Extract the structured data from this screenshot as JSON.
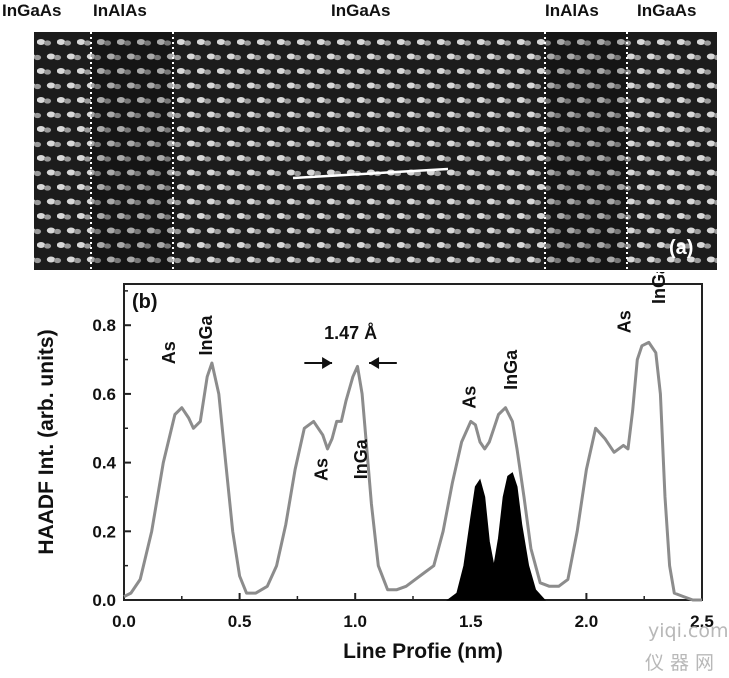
{
  "figure": {
    "region_labels": [
      "InGaAs",
      "InAlAs",
      "InGaAs",
      "InAlAs",
      "InGaAs"
    ],
    "panel_a_label": "(a)",
    "panel_b_label": "(b)",
    "watermark": {
      "line1": "yiqi.com",
      "line2": "仪器网"
    }
  },
  "chart_data": {
    "type": "line",
    "xlabel": "Line Profie (nm)",
    "ylabel": "HAADF Int. (arb. units)",
    "xlim": [
      0.0,
      2.5
    ],
    "ylim": [
      0.0,
      0.92
    ],
    "xticks": [
      "0.0",
      "0.5",
      "1.0",
      "1.5",
      "2.0",
      "2.5"
    ],
    "yticks": [
      "0.0",
      "0.2",
      "0.4",
      "0.6",
      "0.8"
    ],
    "grid": false,
    "series": [
      {
        "color": "#8c8c8c",
        "x": [
          0.0,
          0.03,
          0.07,
          0.12,
          0.17,
          0.22,
          0.25,
          0.28,
          0.3,
          0.33,
          0.36,
          0.38,
          0.41,
          0.44,
          0.47,
          0.5,
          0.53,
          0.57,
          0.62,
          0.66,
          0.7,
          0.74,
          0.78,
          0.82,
          0.86,
          0.88,
          0.9,
          0.92,
          0.94,
          0.96,
          0.99,
          1.01,
          1.03,
          1.05,
          1.07,
          1.1,
          1.14,
          1.18,
          1.22,
          1.26,
          1.3,
          1.34,
          1.38,
          1.42,
          1.46,
          1.5,
          1.52,
          1.54,
          1.56,
          1.58,
          1.6,
          1.62,
          1.65,
          1.68,
          1.7,
          1.73,
          1.76,
          1.8,
          1.84,
          1.88,
          1.92,
          1.96,
          2.0,
          2.04,
          2.08,
          2.12,
          2.16,
          2.18,
          2.2,
          2.22,
          2.24,
          2.27,
          2.3,
          2.32,
          2.34,
          2.36,
          2.38,
          2.42,
          2.46,
          2.5
        ],
        "y": [
          0.01,
          0.02,
          0.06,
          0.2,
          0.4,
          0.54,
          0.56,
          0.53,
          0.5,
          0.52,
          0.65,
          0.69,
          0.6,
          0.4,
          0.2,
          0.07,
          0.02,
          0.02,
          0.04,
          0.1,
          0.22,
          0.38,
          0.5,
          0.52,
          0.48,
          0.44,
          0.47,
          0.52,
          0.52,
          0.58,
          0.65,
          0.68,
          0.6,
          0.44,
          0.28,
          0.1,
          0.03,
          0.03,
          0.04,
          0.06,
          0.08,
          0.1,
          0.2,
          0.34,
          0.46,
          0.52,
          0.51,
          0.46,
          0.44,
          0.46,
          0.5,
          0.54,
          0.56,
          0.52,
          0.44,
          0.3,
          0.15,
          0.05,
          0.04,
          0.04,
          0.06,
          0.2,
          0.38,
          0.5,
          0.47,
          0.43,
          0.45,
          0.44,
          0.55,
          0.7,
          0.74,
          0.75,
          0.72,
          0.6,
          0.3,
          0.1,
          0.02,
          0.01,
          0.0,
          0.0
        ]
      },
      {
        "color": "#000000",
        "fill": true,
        "x": [
          1.4,
          1.44,
          1.47,
          1.5,
          1.52,
          1.54,
          1.56,
          1.58,
          1.6,
          1.62,
          1.64,
          1.66,
          1.68,
          1.7,
          1.72,
          1.75,
          1.78,
          1.82
        ],
        "y": [
          0.0,
          0.02,
          0.1,
          0.24,
          0.33,
          0.35,
          0.3,
          0.17,
          0.1,
          0.18,
          0.3,
          0.36,
          0.37,
          0.33,
          0.22,
          0.1,
          0.03,
          0.0
        ]
      }
    ],
    "annotations": [
      {
        "text": "As",
        "x": 0.22,
        "y": 0.72,
        "rotate": -90
      },
      {
        "text": "InGa",
        "x": 0.38,
        "y": 0.77,
        "rotate": -90
      },
      {
        "text": "1.47 Å",
        "x": 0.98,
        "y": 0.76,
        "rotate": 0
      },
      {
        "text": "As",
        "x": 0.88,
        "y": 0.38,
        "rotate": -90
      },
      {
        "text": "InGa",
        "x": 1.05,
        "y": 0.41,
        "rotate": -90
      },
      {
        "text": "As",
        "x": 1.52,
        "y": 0.59,
        "rotate": -90
      },
      {
        "text": "InGa",
        "x": 1.7,
        "y": 0.67,
        "rotate": -90
      },
      {
        "text": "As",
        "x": 2.19,
        "y": 0.81,
        "rotate": -90
      },
      {
        "text": "InGa",
        "x": 2.34,
        "y": 0.92,
        "rotate": -90
      }
    ],
    "arrows": [
      {
        "from": [
          0.78,
          0.69
        ],
        "to": [
          0.9,
          0.69
        ]
      },
      {
        "from": [
          1.18,
          0.69
        ],
        "to": [
          1.06,
          0.69
        ]
      }
    ]
  }
}
